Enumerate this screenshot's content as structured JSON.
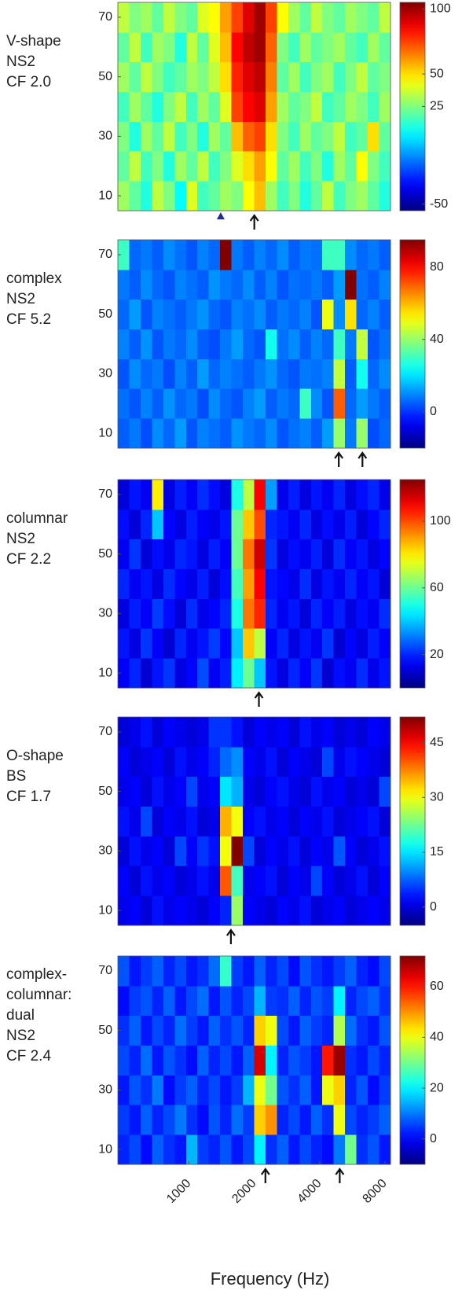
{
  "chart_data": [
    {
      "type": "heatmap",
      "label": [
        "V-shape",
        "NS2",
        "CF 2.0"
      ],
      "xlim": [
        470,
        8485
      ],
      "xbins": [
        470,
        530,
        598,
        675,
        761,
        859,
        969,
        1093,
        1233,
        1391,
        1569,
        1770,
        1997,
        2253,
        2541,
        2867,
        3234,
        3649,
        4116,
        4644,
        5239,
        5910,
        6667,
        7521,
        8485
      ],
      "ylim": [
        5,
        75
      ],
      "ybins": [
        5,
        15,
        25,
        35,
        45,
        55,
        65,
        75
      ],
      "yticks": [
        10,
        30,
        50,
        70
      ],
      "clim": [
        -55,
        105
      ],
      "cticks": [
        -50,
        25,
        50,
        100
      ],
      "arrows": [
        2000
      ],
      "triangles": [
        1400
      ],
      "values": [
        [
          30,
          20,
          10,
          35,
          25,
          5,
          40,
          15,
          20,
          30,
          25,
          45,
          55,
          30,
          15,
          25,
          10,
          20,
          35,
          15,
          25,
          30,
          20,
          10
        ],
        [
          20,
          35,
          15,
          25,
          10,
          30,
          20,
          35,
          15,
          25,
          40,
          50,
          60,
          45,
          20,
          30,
          15,
          25,
          10,
          30,
          20,
          45,
          25,
          15
        ],
        [
          25,
          10,
          30,
          20,
          35,
          15,
          25,
          10,
          30,
          20,
          55,
          70,
          75,
          50,
          25,
          15,
          30,
          20,
          25,
          35,
          15,
          20,
          50,
          20
        ],
        [
          15,
          30,
          20,
          10,
          25,
          35,
          15,
          30,
          20,
          40,
          75,
          85,
          90,
          60,
          30,
          20,
          25,
          35,
          15,
          20,
          30,
          25,
          15,
          30
        ],
        [
          30,
          20,
          35,
          25,
          15,
          20,
          30,
          25,
          35,
          50,
          80,
          90,
          95,
          65,
          20,
          30,
          15,
          25,
          30,
          15,
          25,
          35,
          20,
          25
        ],
        [
          20,
          35,
          15,
          30,
          25,
          10,
          35,
          20,
          40,
          55,
          85,
          95,
          100,
          70,
          25,
          15,
          30,
          20,
          25,
          30,
          20,
          15,
          30,
          20
        ],
        [
          35,
          25,
          30,
          20,
          35,
          25,
          20,
          40,
          45,
          60,
          75,
          90,
          100,
          75,
          45,
          30,
          20,
          35,
          25,
          20,
          30,
          25,
          20,
          35
        ]
      ]
    },
    {
      "type": "heatmap",
      "label": [
        "complex",
        "NS2",
        "CF 5.2"
      ],
      "xlim": [
        470,
        8485
      ],
      "xbins": [
        470,
        530,
        598,
        675,
        761,
        859,
        969,
        1093,
        1233,
        1391,
        1569,
        1770,
        1997,
        2253,
        2541,
        2867,
        3234,
        3649,
        4116,
        4644,
        5239,
        5910,
        6667,
        7521,
        8485
      ],
      "ylim": [
        5,
        75
      ],
      "ybins": [
        5,
        15,
        25,
        35,
        45,
        55,
        65,
        75
      ],
      "yticks": [
        10,
        30,
        50,
        70
      ],
      "clim": [
        -20,
        95
      ],
      "cticks": [
        0,
        40,
        80
      ],
      "arrows": [
        4900,
        6300
      ],
      "values": [
        [
          5,
          8,
          3,
          10,
          6,
          12,
          4,
          9,
          7,
          5,
          11,
          8,
          6,
          10,
          4,
          7,
          9,
          5,
          12,
          40,
          8,
          40,
          3,
          6
        ],
        [
          7,
          4,
          9,
          5,
          11,
          6,
          8,
          3,
          10,
          6,
          4,
          9,
          12,
          5,
          8,
          6,
          30,
          10,
          4,
          70,
          6,
          12,
          8,
          5
        ],
        [
          4,
          10,
          6,
          8,
          3,
          9,
          5,
          12,
          6,
          9,
          7,
          5,
          8,
          11,
          6,
          4,
          8,
          7,
          9,
          45,
          5,
          25,
          6,
          10
        ],
        [
          9,
          5,
          11,
          4,
          8,
          6,
          10,
          5,
          3,
          8,
          12,
          6,
          4,
          25,
          7,
          10,
          5,
          9,
          6,
          30,
          8,
          45,
          4,
          7
        ],
        [
          6,
          12,
          4,
          9,
          7,
          5,
          8,
          11,
          6,
          4,
          9,
          7,
          10,
          5,
          8,
          6,
          9,
          4,
          50,
          10,
          55,
          6,
          9,
          5
        ],
        [
          8,
          5,
          10,
          6,
          4,
          9,
          7,
          5,
          11,
          8,
          6,
          10,
          5,
          9,
          4,
          7,
          6,
          8,
          5,
          12,
          95,
          7,
          5,
          9
        ],
        [
          30,
          6,
          8,
          5,
          10,
          7,
          4,
          9,
          6,
          95,
          8,
          5,
          9,
          6,
          10,
          5,
          8,
          7,
          30,
          30,
          10,
          6,
          8,
          5
        ]
      ]
    },
    {
      "type": "heatmap",
      "label": [
        "columnar",
        "NS2",
        "CF 2.2"
      ],
      "xlim": [
        470,
        8485
      ],
      "xbins": [
        470,
        530,
        598,
        675,
        761,
        859,
        969,
        1093,
        1233,
        1391,
        1569,
        1770,
        1997,
        2253,
        2541,
        2867,
        3234,
        3649,
        4116,
        4644,
        5239,
        5910,
        6667,
        7521,
        8485
      ],
      "ylim": [
        5,
        75
      ],
      "ybins": [
        5,
        15,
        25,
        35,
        45,
        55,
        65,
        75
      ],
      "yticks": [
        10,
        30,
        50,
        70
      ],
      "clim": [
        0,
        125
      ],
      "cticks": [
        20,
        60,
        100
      ],
      "arrows": [
        2100
      ],
      "values": [
        [
          15,
          20,
          10,
          18,
          22,
          12,
          16,
          25,
          14,
          19,
          45,
          60,
          40,
          18,
          12,
          20,
          15,
          22,
          10,
          17,
          14,
          21,
          13,
          18
        ],
        [
          18,
          12,
          22,
          15,
          10,
          20,
          14,
          18,
          23,
          16,
          40,
          85,
          70,
          15,
          20,
          12,
          18,
          14,
          22,
          10,
          16,
          12,
          19,
          15
        ],
        [
          12,
          19,
          15,
          23,
          17,
          11,
          21,
          13,
          16,
          20,
          50,
          95,
          105,
          20,
          14,
          18,
          11,
          20,
          15,
          19,
          12,
          17,
          14,
          21
        ],
        [
          20,
          14,
          18,
          12,
          21,
          16,
          13,
          19,
          11,
          17,
          55,
          90,
          110,
          18,
          16,
          13,
          21,
          12,
          18,
          14,
          20,
          15,
          18,
          11
        ],
        [
          14,
          22,
          11,
          17,
          13,
          20,
          18,
          12,
          19,
          15,
          60,
          95,
          115,
          22,
          12,
          17,
          14,
          19,
          11,
          21,
          15,
          18,
          12,
          16
        ],
        [
          17,
          11,
          20,
          40,
          16,
          12,
          19,
          15,
          13,
          18,
          60,
          85,
          100,
          20,
          18,
          14,
          20,
          12,
          17,
          13,
          19,
          11,
          16,
          20
        ],
        [
          11,
          18,
          14,
          80,
          12,
          19,
          15,
          21,
          17,
          12,
          50,
          70,
          110,
          35,
          13,
          19,
          12,
          18,
          14,
          20,
          12,
          17,
          20,
          13
        ]
      ]
    },
    {
      "type": "heatmap",
      "label": [
        "O-shape",
        "BS",
        "CF 1.7"
      ],
      "xlim": [
        470,
        8485
      ],
      "xbins": [
        470,
        530,
        598,
        675,
        761,
        859,
        969,
        1093,
        1233,
        1391,
        1569,
        1770,
        1997,
        2253,
        2541,
        2867,
        3234,
        3649,
        4116,
        4644,
        5239,
        5910,
        6667,
        7521,
        8485
      ],
      "ylim": [
        5,
        75
      ],
      "ybins": [
        5,
        15,
        25,
        35,
        45,
        55,
        65,
        75
      ],
      "yticks": [
        10,
        30,
        50,
        70
      ],
      "clim": [
        -5,
        52
      ],
      "cticks": [
        0,
        15,
        30,
        45
      ],
      "arrows": [
        1560
      ],
      "values": [
        [
          1,
          2,
          0,
          3,
          1,
          2,
          1,
          0,
          2,
          4,
          25,
          2,
          1,
          0,
          2,
          1,
          3,
          0,
          1,
          2,
          0,
          1,
          2,
          1
        ],
        [
          2,
          0,
          3,
          1,
          2,
          0,
          1,
          3,
          1,
          40,
          20,
          1,
          2,
          3,
          0,
          2,
          1,
          6,
          2,
          0,
          1,
          3,
          0,
          2
        ],
        [
          0,
          3,
          1,
          2,
          0,
          6,
          2,
          5,
          3,
          30,
          52,
          6,
          0,
          2,
          1,
          3,
          0,
          2,
          1,
          7,
          2,
          0,
          1,
          3
        ],
        [
          3,
          1,
          6,
          0,
          2,
          1,
          3,
          0,
          1,
          35,
          30,
          2,
          3,
          1,
          2,
          0,
          2,
          1,
          3,
          0,
          1,
          2,
          3,
          0
        ],
        [
          1,
          2,
          0,
          3,
          1,
          2,
          6,
          1,
          2,
          15,
          12,
          1,
          0,
          2,
          3,
          1,
          0,
          3,
          1,
          2,
          0,
          1,
          0,
          6
        ],
        [
          2,
          0,
          1,
          2,
          0,
          3,
          1,
          2,
          4,
          8,
          10,
          2,
          1,
          3,
          0,
          2,
          1,
          0,
          6,
          1,
          3,
          2,
          1,
          0
        ],
        [
          0,
          1,
          3,
          0,
          2,
          1,
          0,
          1,
          5,
          5,
          3,
          0,
          2,
          1,
          2,
          0,
          3,
          1,
          2,
          0,
          1,
          0,
          2,
          1
        ]
      ]
    },
    {
      "type": "heatmap",
      "label": [
        "complex-",
        "columnar:",
        "dual",
        "NS2",
        "CF 2.4"
      ],
      "xlim": [
        470,
        8485
      ],
      "xbins": [
        470,
        530,
        598,
        675,
        761,
        859,
        969,
        1093,
        1233,
        1391,
        1569,
        1770,
        1997,
        2253,
        2541,
        2867,
        3234,
        3649,
        4116,
        4644,
        5239,
        5910,
        6667,
        7521,
        8485
      ],
      "ylim": [
        5,
        75
      ],
      "ybins": [
        5,
        15,
        25,
        35,
        45,
        55,
        65,
        75
      ],
      "yticks": [
        10,
        30,
        50,
        70
      ],
      "xticks": [
        1000,
        2000,
        4000,
        8000
      ],
      "xlabel": "Frequency (Hz)",
      "clim": [
        -10,
        72
      ],
      "cticks": [
        0,
        20,
        40,
        60
      ],
      "arrows": [
        2250,
        4950
      ],
      "values": [
        [
          3,
          6,
          1,
          8,
          4,
          2,
          15,
          5,
          3,
          7,
          2,
          6,
          20,
          4,
          8,
          2,
          6,
          3,
          1,
          10,
          30,
          4,
          7,
          2
        ],
        [
          5,
          2,
          8,
          3,
          6,
          10,
          4,
          1,
          7,
          3,
          9,
          5,
          45,
          50,
          3,
          6,
          2,
          8,
          4,
          40,
          6,
          3,
          5,
          8
        ],
        [
          2,
          7,
          4,
          10,
          1,
          5,
          8,
          3,
          6,
          2,
          5,
          15,
          40,
          30,
          7,
          4,
          8,
          2,
          40,
          45,
          3,
          7,
          1,
          5
        ],
        [
          6,
          3,
          9,
          2,
          7,
          4,
          1,
          8,
          3,
          6,
          2,
          8,
          65,
          20,
          3,
          7,
          5,
          2,
          60,
          70,
          4,
          2,
          6,
          3
        ],
        [
          4,
          8,
          2,
          6,
          3,
          9,
          5,
          2,
          8,
          4,
          7,
          3,
          45,
          40,
          6,
          2,
          8,
          5,
          3,
          35,
          9,
          4,
          2,
          7
        ],
        [
          1,
          5,
          7,
          3,
          8,
          2,
          6,
          9,
          2,
          7,
          3,
          6,
          15,
          5,
          4,
          8,
          3,
          7,
          5,
          20,
          3,
          6,
          8,
          4
        ],
        [
          7,
          2,
          5,
          8,
          3,
          6,
          2,
          4,
          9,
          25,
          5,
          2,
          8,
          3,
          6,
          1,
          7,
          4,
          2,
          5,
          8,
          3,
          1,
          6
        ]
      ]
    }
  ]
}
